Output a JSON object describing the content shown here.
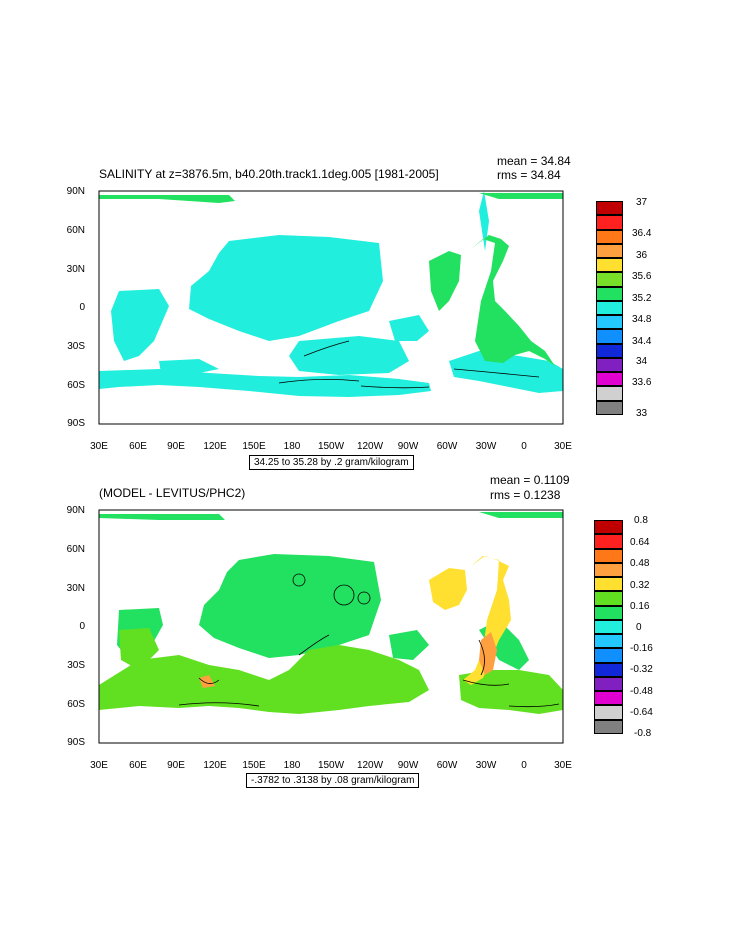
{
  "panels": [
    {
      "title": "SALINITY at z=3876.5m, b40.20th.track1.1deg.005 [1981-2005]",
      "mean": "mean = 34.84",
      "rms": "rms = 34.84",
      "contour_info": "34.25 to 35.28 by .2 gram/kilogram",
      "colorbar_labels": [
        "37",
        "36.4",
        "36",
        "35.6",
        "35.2",
        "34.8",
        "34.4",
        "34",
        "33.6",
        "33"
      ],
      "colorbar_colors": [
        "#c00000",
        "#ff2020",
        "#ff7818",
        "#ffa040",
        "#ffe030",
        "#78e028",
        "#22e060",
        "#22eedd",
        "#22c8ff",
        "#1090ff",
        "#1028d8",
        "#8020c0",
        "#e000d0",
        "#d0d0d0",
        "#808080"
      ]
    },
    {
      "title": "(MODEL - LEVITUS/PHC2)",
      "mean": "mean = 0.1109",
      "rms": "rms = 0.1238",
      "contour_info": "-.3782 to .3138 by .08 gram/kilogram",
      "colorbar_labels": [
        "0.8",
        "0.64",
        "0.48",
        "0.32",
        "0.16",
        "0",
        "-0.16",
        "-0.32",
        "-0.48",
        "-0.64",
        "-0.8"
      ],
      "colorbar_colors": [
        "#c00000",
        "#ff2020",
        "#ff7818",
        "#ffa040",
        "#ffe030",
        "#60e020",
        "#22e060",
        "#22eedd",
        "#22c8ff",
        "#1090ff",
        "#1028d8",
        "#8020c0",
        "#e000d0",
        "#d0d0d0",
        "#808080"
      ]
    }
  ],
  "y_axis": [
    "90N",
    "60N",
    "30N",
    "0",
    "30S",
    "60S",
    "90S"
  ],
  "x_axis": [
    "30E",
    "60E",
    "90E",
    "120E",
    "150E",
    "180",
    "150W",
    "120W",
    "90W",
    "60W",
    "30W",
    "0",
    "30E"
  ],
  "colors": {
    "salinity_main": "#22eedd",
    "salinity_atlantic": "#22e060",
    "diff_main": "#22e060",
    "diff_south": "#60e020",
    "diff_atlantic": "#ffe030",
    "diff_high": "#ffa040"
  }
}
